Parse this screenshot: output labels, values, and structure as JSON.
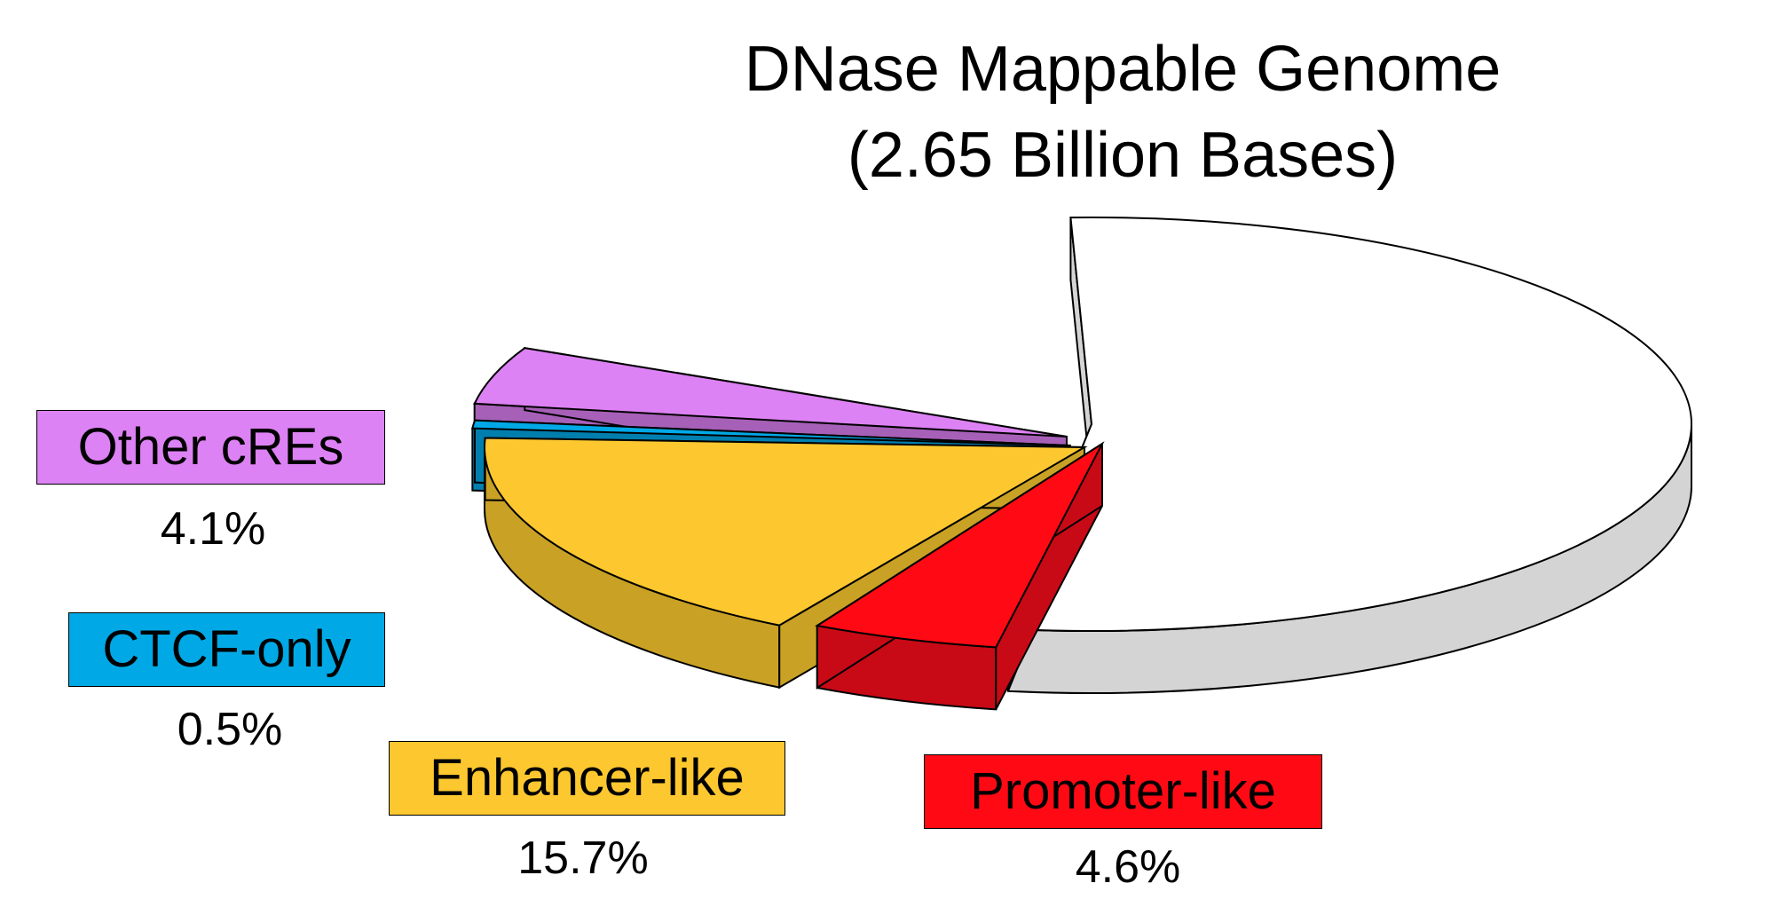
{
  "chart_data": {
    "type": "pie",
    "title": "DNase Mappable Genome",
    "subtitle": "(2.65 Billion Bases)",
    "slices": [
      {
        "label": "Promoter-like",
        "value": 4.6,
        "value_label": "4.6%",
        "color": "#ff0a14",
        "side_color": "#c80a16",
        "exploded": true
      },
      {
        "label": "Enhancer-like",
        "value": 15.7,
        "value_label": "15.7%",
        "color": "#fdc82f",
        "side_color": "#c9a125",
        "exploded": true
      },
      {
        "label": "CTCF-only",
        "value": 0.5,
        "value_label": "0.5%",
        "color": "#00a9e6",
        "side_color": "#007fae",
        "exploded": true
      },
      {
        "label": "Other cREs",
        "value": 4.1,
        "value_label": "4.1%",
        "color": "#dd82f4",
        "side_color": "#a760b8",
        "exploded": true
      },
      {
        "label": "",
        "value": 75.1,
        "value_label": "",
        "color": "#ffffff",
        "side_color": "#d4d4d4",
        "exploded": false
      }
    ],
    "legend": "labels beside slices"
  }
}
